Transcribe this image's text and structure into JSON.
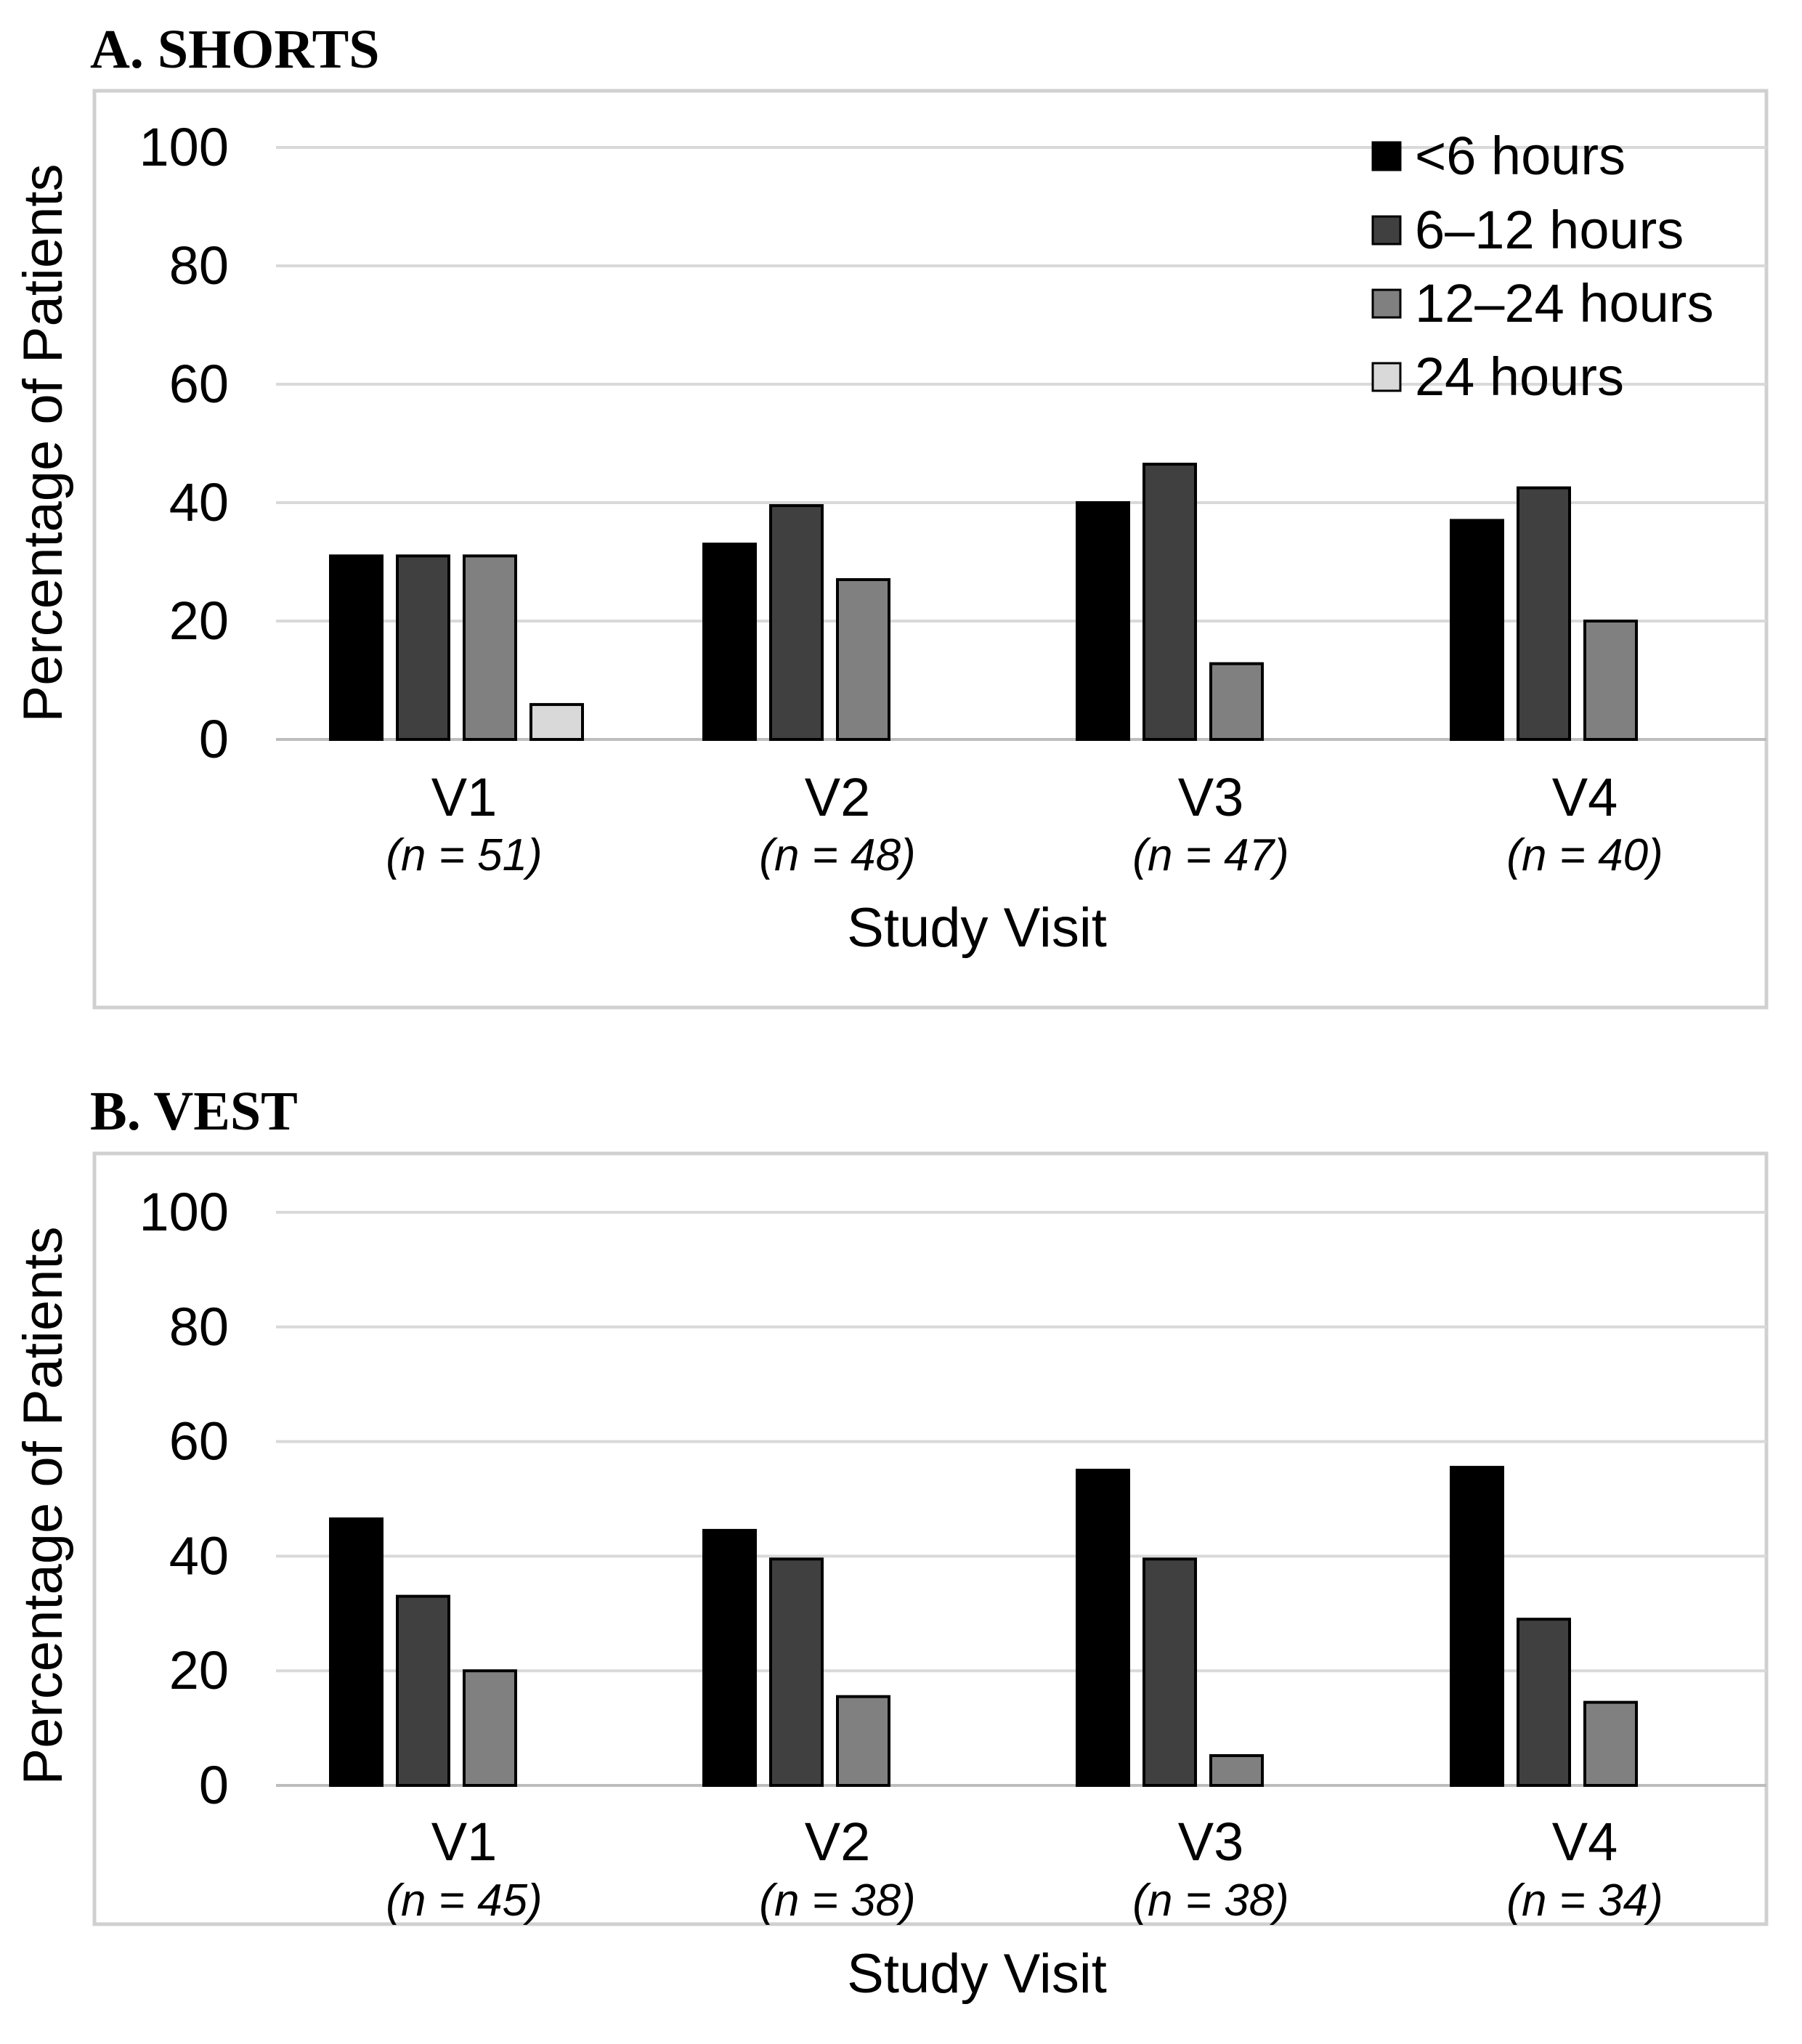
{
  "chart_data": [
    {
      "type": "bar",
      "title": "A. SHORTS",
      "xlabel": "Study Visit",
      "ylabel": "Percentage of Patients",
      "ylim": [
        0,
        100
      ],
      "yticks": [
        "0",
        "20",
        "40",
        "60",
        "80",
        "100"
      ],
      "grid": true,
      "legend_position": "top-right",
      "categories": [
        "V1",
        "V2",
        "V3",
        "V4"
      ],
      "category_sublabels": [
        "(n = 51)",
        "(n = 48)",
        "(n = 47)",
        "(n = 40)"
      ],
      "series": [
        {
          "name": "<6 hours",
          "color": "#000000",
          "values": [
            31,
            33,
            40,
            37
          ]
        },
        {
          "name": "6–12 hours",
          "color": "#404040",
          "values": [
            31,
            39.5,
            46.5,
            42.5
          ]
        },
        {
          "name": "12–24 hours",
          "color": "#808080",
          "values": [
            31,
            27,
            12.8,
            20
          ]
        },
        {
          "name": "24 hours",
          "color": "#d9d9d9",
          "values": [
            5.9,
            0,
            0,
            0
          ]
        }
      ]
    },
    {
      "type": "bar",
      "title": "B. VEST",
      "xlabel": "Study Visit",
      "ylabel": "Percentage of Patients",
      "ylim": [
        0,
        100
      ],
      "yticks": [
        "0",
        "20",
        "40",
        "60",
        "80",
        "100"
      ],
      "grid": true,
      "categories": [
        "V1",
        "V2",
        "V3",
        "V4"
      ],
      "category_sublabels": [
        "(n = 45)",
        "(n = 38)",
        "(n = 38)",
        "(n = 34)"
      ],
      "series": [
        {
          "name": "<6 hours",
          "color": "#000000",
          "values": [
            46.5,
            44.5,
            55,
            55.5
          ]
        },
        {
          "name": "6–12 hours",
          "color": "#404040",
          "values": [
            33,
            39.5,
            39.5,
            29
          ]
        },
        {
          "name": "12–24 hours",
          "color": "#808080",
          "values": [
            20,
            15.5,
            5.2,
            14.5
          ]
        },
        {
          "name": "24 hours",
          "color": "#d9d9d9",
          "values": [
            0,
            0,
            0,
            0
          ]
        }
      ]
    }
  ]
}
